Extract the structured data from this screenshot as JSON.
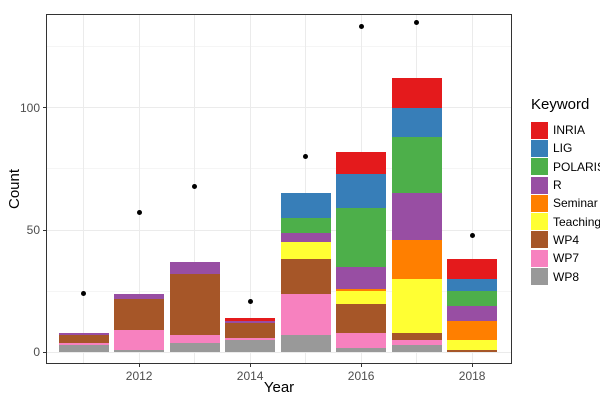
{
  "figure": {
    "background": "#FFFFFF",
    "panel_border_color": "#333333",
    "grid_major_color": "#EBEBEB",
    "grid_minor_color": "#F5F5F5",
    "axis_text_color": "#4D4D4D",
    "point_color": "#000000"
  },
  "chart_data": {
    "type": "bar",
    "subtype": "stacked-bars-with-points-overlay",
    "title": "",
    "xlabel": "Year",
    "ylabel": "Count",
    "categories": [
      2011,
      2012,
      2013,
      2014,
      2015,
      2016,
      2017,
      2018
    ],
    "xticks": [
      2012,
      2014,
      2016,
      2018
    ],
    "yticks": [
      0,
      50,
      100
    ],
    "minor_yticks": [
      25,
      75,
      125
    ],
    "xlim": [
      2010.34,
      2018.7
    ],
    "ylim": [
      -4.3,
      137.9
    ],
    "bar_width": 0.9,
    "grid": "on",
    "legend_position": "right",
    "legend_title": "Keyword",
    "stack_order_bottom_to_top": [
      "WP8",
      "WP7",
      "WP4",
      "Teaching",
      "Seminar",
      "R",
      "POLARIS",
      "LIG",
      "INRIA"
    ],
    "series": [
      {
        "name": "INRIA",
        "color": "#E41A1C",
        "values": [
          0,
          0,
          0,
          1,
          0,
          9,
          12,
          8
        ]
      },
      {
        "name": "LIG",
        "color": "#377EB8",
        "values": [
          0,
          0,
          0,
          0,
          10,
          14,
          12,
          5
        ]
      },
      {
        "name": "POLARIS",
        "color": "#4DAF4A",
        "values": [
          0,
          0,
          0,
          0,
          6,
          24,
          23,
          6
        ]
      },
      {
        "name": "R",
        "color": "#984EA3",
        "values": [
          1,
          2,
          5,
          1,
          4,
          9,
          19,
          6
        ]
      },
      {
        "name": "Seminar",
        "color": "#FF7F00",
        "values": [
          0,
          0,
          0,
          0,
          0,
          1,
          16,
          8
        ]
      },
      {
        "name": "Teaching",
        "color": "#FFFF33",
        "values": [
          0,
          0,
          0,
          0,
          7,
          5,
          22,
          4
        ]
      },
      {
        "name": "WP4",
        "color": "#A65628",
        "values": [
          3,
          13,
          25,
          6,
          14,
          12,
          3,
          1
        ]
      },
      {
        "name": "WP7",
        "color": "#F781BF",
        "values": [
          1,
          8,
          3,
          1,
          17,
          6,
          2,
          0
        ]
      },
      {
        "name": "WP8",
        "color": "#999999",
        "values": [
          3,
          1,
          4,
          5,
          7,
          2,
          3,
          0
        ]
      }
    ],
    "bar_totals": [
      8,
      24,
      37,
      14,
      65,
      82,
      112,
      38
    ],
    "points": {
      "color": "#000000",
      "x": [
        2011,
        2012,
        2013,
        2014,
        2015,
        2016,
        2017,
        2018
      ],
      "values": [
        24,
        57,
        68,
        21,
        80,
        133,
        135,
        48
      ]
    }
  }
}
